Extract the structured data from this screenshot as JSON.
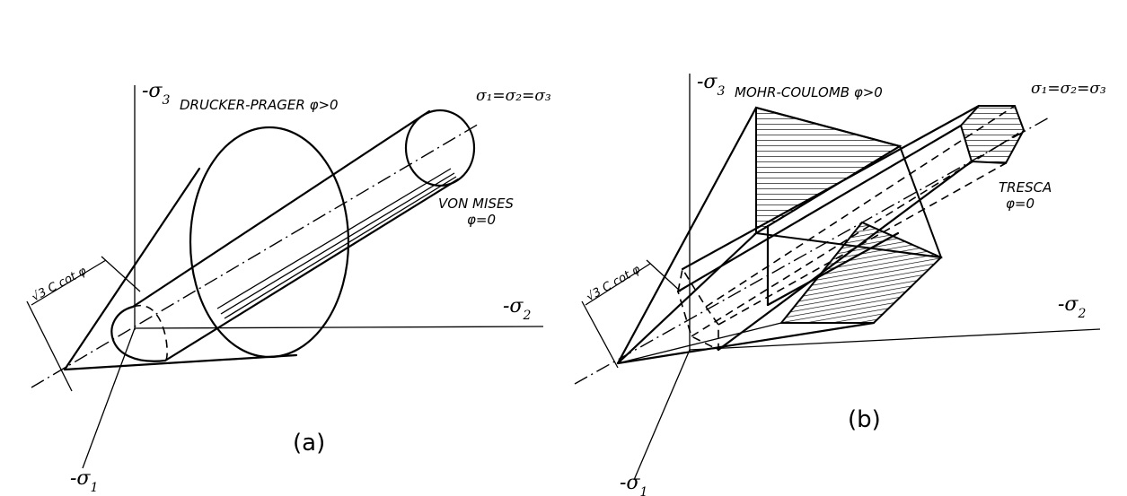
{
  "panel_a": {
    "caption": "(a)",
    "axis_s3_label": "-σ",
    "axis_s3_sub": "3",
    "axis_s2_label": "-σ",
    "axis_s2_sub": "2",
    "axis_s1_label": "-σ",
    "axis_s1_sub": "1",
    "hydro_axis_label": "σ₁=σ₂=σ₃",
    "outer_surface_label": "DRUCKER-PRAGER  φ>0",
    "inner_surface_label": "VON MISES",
    "inner_surface_condition": "φ=0",
    "dimension_label": "√3 C cot φ"
  },
  "panel_b": {
    "caption": "(b)",
    "axis_s3_label": "-σ",
    "axis_s3_sub": "3",
    "axis_s2_label": "-σ",
    "axis_s2_sub": "2",
    "axis_s1_label": "-σ",
    "axis_s1_sub": "1",
    "hydro_axis_label": "σ₁=σ₂=σ₃",
    "outer_surface_label": "MOHR-COULOMB  φ>0",
    "inner_surface_label": "TRESCA",
    "inner_surface_condition": "φ=0",
    "dimension_label": "√3 C cot φ"
  }
}
